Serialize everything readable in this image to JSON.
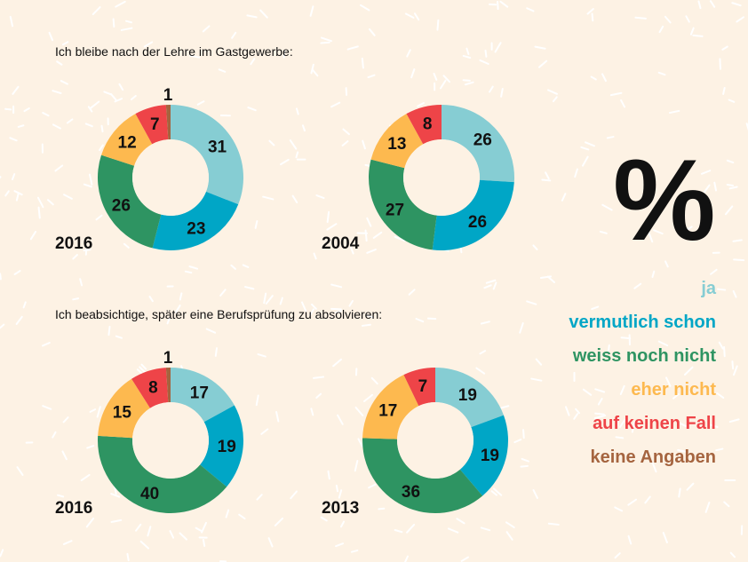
{
  "chart_data": [
    {
      "type": "pie",
      "title": "Ich bleibe nach der Lehre im Gastgewerbe:",
      "year": "2016",
      "values": [
        31,
        23,
        26,
        12,
        7,
        1
      ]
    },
    {
      "type": "pie",
      "title": "Ich bleibe nach der Lehre im Gastgewerbe:",
      "year": "2004",
      "values": [
        26,
        26,
        27,
        13,
        8,
        0
      ]
    },
    {
      "type": "pie",
      "title": "Ich beabsichtige, später eine Berufsprüfung zu absolvieren:",
      "year": "2016",
      "values": [
        17,
        19,
        40,
        15,
        8,
        1
      ]
    },
    {
      "type": "pie",
      "title": "Ich beabsichtige, später eine Berufsprüfung zu absolvieren:",
      "year": "2013",
      "values": [
        19,
        19,
        36,
        17,
        7,
        0
      ]
    }
  ],
  "unit": "%",
  "titles": [
    "Ich bleibe nach der Lehre im Gastgewerbe:",
    "Ich beabsichtige, später eine Berufsprüfung zu absolvieren:"
  ],
  "legend": [
    {
      "label": "ja",
      "color": "#86cdd3"
    },
    {
      "label": "vermutlich schon",
      "color": "#00a6c6"
    },
    {
      "label": "weiss noch nicht",
      "color": "#2e9462"
    },
    {
      "label": "eher nicht",
      "color": "#fdb94f"
    },
    {
      "label": "auf keinen Fall",
      "color": "#ee4448"
    },
    {
      "label": "keine Angaben",
      "color": "#a5643f"
    }
  ]
}
